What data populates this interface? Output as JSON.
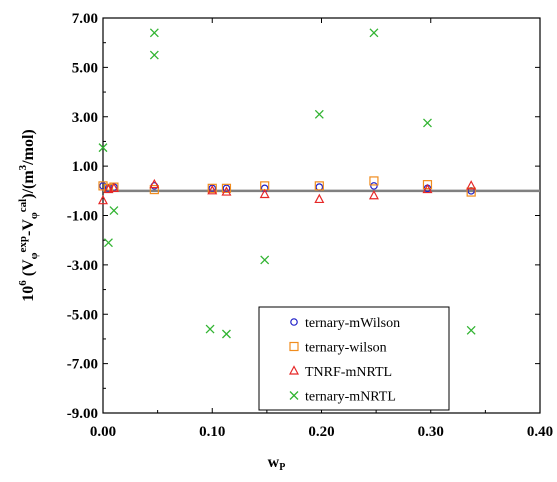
{
  "chart_data": {
    "type": "scatter",
    "xlim": [
      0,
      0.4
    ],
    "ylim": [
      -9,
      7
    ],
    "xticks": [
      0.0,
      0.1,
      0.2,
      0.3,
      0.4
    ],
    "yticks": [
      7,
      5,
      3,
      1,
      -1,
      -3,
      -5,
      -7,
      -9
    ],
    "xtick_labels": [
      "0.00",
      "0.10",
      "0.20",
      "0.30",
      "0.40"
    ],
    "ytick_labels": [
      "7.00",
      "5.00",
      "3.00",
      "1.00",
      "-1.00",
      "-3.00",
      "-5.00",
      "-7.00",
      "-9.00"
    ],
    "ylabel": {
      "prefix": "10",
      "prefix_sup": "6",
      "open": " (V",
      "sub1": "φ",
      "sup1": "exp",
      "mid": "-V",
      "sub2": "φ",
      "sup2": "cal",
      "close": ")/(m",
      "sup3": "3",
      "end": "/mol)"
    },
    "xlabel": {
      "main": "w",
      "sub": "P"
    },
    "grid": false,
    "legend_position": "lower-right",
    "zero_line": {
      "y": 0,
      "color": "#808080"
    },
    "series": [
      {
        "name": "ternary-mWilson",
        "marker": "circle",
        "color": "#1f1fc8",
        "points": [
          [
            0.0,
            0.2
          ],
          [
            0.005,
            0.1
          ],
          [
            0.01,
            0.15
          ],
          [
            0.047,
            0.2
          ],
          [
            0.1,
            0.1
          ],
          [
            0.113,
            0.1
          ],
          [
            0.148,
            0.1
          ],
          [
            0.198,
            0.15
          ],
          [
            0.248,
            0.2
          ],
          [
            0.297,
            0.1
          ],
          [
            0.337,
            0.0
          ]
        ]
      },
      {
        "name": "ternary-wilson",
        "marker": "square",
        "color": "#f08c1e",
        "points": [
          [
            0.0,
            0.2
          ],
          [
            0.005,
            0.1
          ],
          [
            0.01,
            0.15
          ],
          [
            0.047,
            0.05
          ],
          [
            0.1,
            0.1
          ],
          [
            0.113,
            0.1
          ],
          [
            0.148,
            0.2
          ],
          [
            0.198,
            0.2
          ],
          [
            0.248,
            0.4
          ],
          [
            0.297,
            0.25
          ],
          [
            0.337,
            -0.05
          ]
        ]
      },
      {
        "name": "TNRF-mNRTL",
        "marker": "triangle",
        "color": "#e62828",
        "points": [
          [
            0.0,
            -0.4
          ],
          [
            0.005,
            0.05
          ],
          [
            0.01,
            0.1
          ],
          [
            0.047,
            0.25
          ],
          [
            0.1,
            0.0
          ],
          [
            0.113,
            -0.05
          ],
          [
            0.148,
            -0.15
          ],
          [
            0.198,
            -0.35
          ],
          [
            0.248,
            -0.2
          ],
          [
            0.297,
            0.05
          ],
          [
            0.337,
            0.2
          ]
        ]
      },
      {
        "name": "ternary-mNRTL",
        "marker": "x",
        "color": "#32b432",
        "points": [
          [
            0.0,
            1.75
          ],
          [
            0.005,
            -2.1
          ],
          [
            0.01,
            -0.8
          ],
          [
            0.047,
            6.4
          ],
          [
            0.047,
            5.5
          ],
          [
            0.098,
            -5.6
          ],
          [
            0.113,
            -5.8
          ],
          [
            0.148,
            -2.8
          ],
          [
            0.198,
            3.1
          ],
          [
            0.248,
            6.4
          ],
          [
            0.297,
            2.75
          ],
          [
            0.337,
            -5.65
          ]
        ]
      }
    ]
  }
}
